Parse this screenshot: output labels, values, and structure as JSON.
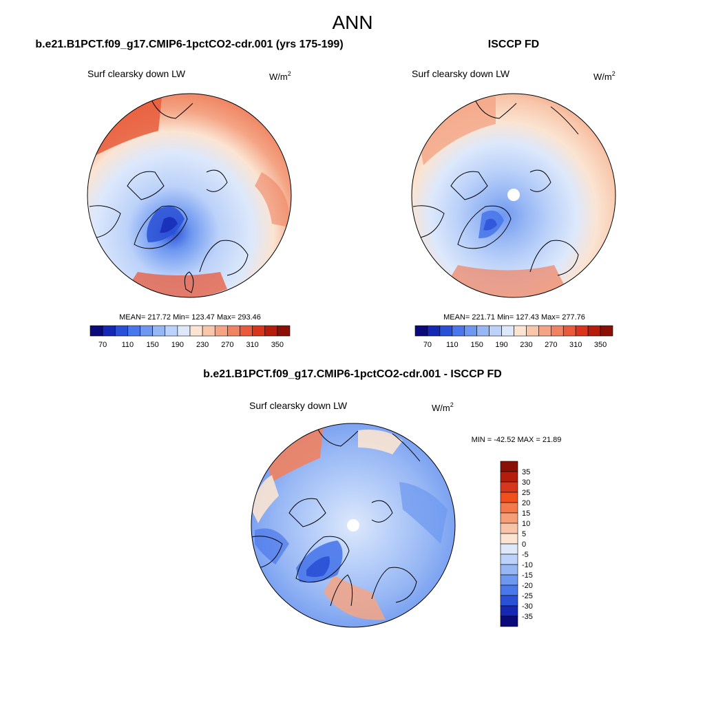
{
  "page_title": "ANN",
  "panels": [
    {
      "heading": "b.e21.B1PCT.f09_g17.CMIP6-1pctCO2-cdr.001 (yrs 175-199)",
      "variable": "Surf clearsky down LW",
      "units_base": "W/m",
      "units_exp": "2",
      "stats": "MEAN= 217.72  Min= 123.47  Max= 293.46"
    },
    {
      "heading": "ISCCP FD",
      "variable": "Surf clearsky down LW",
      "units_base": "W/m",
      "units_exp": "2",
      "stats": "MEAN= 221.71  Min= 127.43  Max= 277.76"
    },
    {
      "heading": "b.e21.B1PCT.f09_g17.CMIP6-1pctCO2-cdr.001 - ISCCP FD",
      "variable": "Surf clearsky down LW",
      "units_base": "W/m",
      "units_exp": "2",
      "stats": "MIN = -42.52 MAX =  21.89"
    }
  ],
  "chart_data": [
    {
      "type": "heatmap",
      "projection": "north-polar-stereographic",
      "title": "b.e21.B1PCT.f09_g17.CMIP6-1pctCO2-cdr.001 (yrs 175-199)",
      "variable": "Surf clearsky down LW",
      "units": "W/m2",
      "mean": 217.72,
      "min": 123.47,
      "max": 293.46,
      "colorbar": {
        "orientation": "horizontal",
        "ticks": [
          "70",
          "110",
          "150",
          "190",
          "230",
          "270",
          "310",
          "350"
        ],
        "colors": [
          "#0a0a7a",
          "#1428b4",
          "#2a50d6",
          "#4a78ea",
          "#6e98f0",
          "#96b6f4",
          "#bcd2fa",
          "#dde8fb",
          "#fbe4d2",
          "#f8c6aa",
          "#f4a484",
          "#ef8260",
          "#e85a3a",
          "#d8351d",
          "#b41c0c",
          "#8a0f06"
        ]
      }
    },
    {
      "type": "heatmap",
      "projection": "north-polar-stereographic",
      "title": "ISCCP FD",
      "variable": "Surf clearsky down LW",
      "units": "W/m2",
      "mean": 221.71,
      "min": 127.43,
      "max": 277.76,
      "colorbar": {
        "orientation": "horizontal",
        "ticks": [
          "70",
          "110",
          "150",
          "190",
          "230",
          "270",
          "310",
          "350"
        ],
        "colors": [
          "#0a0a7a",
          "#1428b4",
          "#2a50d6",
          "#4a78ea",
          "#6e98f0",
          "#96b6f4",
          "#bcd2fa",
          "#dde8fb",
          "#fbe4d2",
          "#f8c6aa",
          "#f4a484",
          "#ef8260",
          "#e85a3a",
          "#d8351d",
          "#b41c0c",
          "#8a0f06"
        ]
      }
    },
    {
      "type": "heatmap",
      "projection": "north-polar-stereographic",
      "title": "b.e21.B1PCT.f09_g17.CMIP6-1pctCO2-cdr.001 - ISCCP FD",
      "variable": "Surf clearsky down LW",
      "units": "W/m2",
      "min": -42.52,
      "max": 21.89,
      "colorbar": {
        "orientation": "vertical",
        "ticks": [
          "35",
          "30",
          "25",
          "20",
          "15",
          "10",
          "5",
          "0",
          "-5",
          "-10",
          "-15",
          "-20",
          "-25",
          "-30",
          "-35"
        ],
        "colors": [
          "#8a0f06",
          "#b41c0c",
          "#d8351d",
          "#f0501e",
          "#f4784a",
          "#f69e78",
          "#f8c4a8",
          "#fbe4d2",
          "#dde8fb",
          "#bcd2fa",
          "#96b6f4",
          "#6e98f0",
          "#4a78ea",
          "#2a50d6",
          "#1428b4",
          "#0a0a7a"
        ]
      }
    }
  ]
}
